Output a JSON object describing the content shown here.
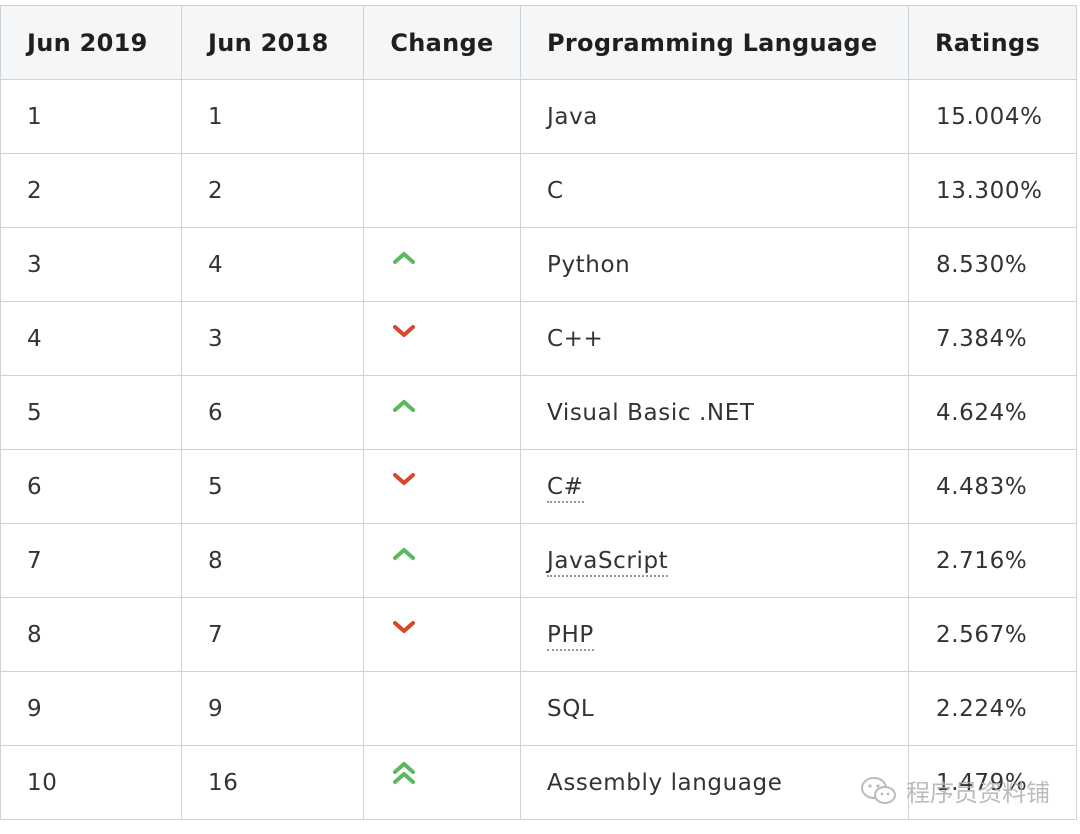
{
  "table": {
    "headers": [
      "Jun 2019",
      "Jun 2018",
      "Change",
      "Programming Language",
      "Ratings"
    ],
    "rows": [
      {
        "jun2019": "1",
        "jun2018": "1",
        "change": "none",
        "language": "Java",
        "link": false,
        "rating": "15.004%"
      },
      {
        "jun2019": "2",
        "jun2018": "2",
        "change": "none",
        "language": "C",
        "link": false,
        "rating": "13.300%"
      },
      {
        "jun2019": "3",
        "jun2018": "4",
        "change": "up",
        "language": "Python",
        "link": false,
        "rating": "8.530%"
      },
      {
        "jun2019": "4",
        "jun2018": "3",
        "change": "down",
        "language": "C++",
        "link": false,
        "rating": "7.384%"
      },
      {
        "jun2019": "5",
        "jun2018": "6",
        "change": "up",
        "language": "Visual Basic .NET",
        "link": false,
        "rating": "4.624%"
      },
      {
        "jun2019": "6",
        "jun2018": "5",
        "change": "down",
        "language": "C#",
        "link": true,
        "rating": "4.483%"
      },
      {
        "jun2019": "7",
        "jun2018": "8",
        "change": "up",
        "language": "JavaScript",
        "link": true,
        "rating": "2.716%"
      },
      {
        "jun2019": "8",
        "jun2018": "7",
        "change": "down",
        "language": "PHP",
        "link": true,
        "rating": "2.567%"
      },
      {
        "jun2019": "9",
        "jun2018": "9",
        "change": "none",
        "language": "SQL",
        "link": false,
        "rating": "2.224%"
      },
      {
        "jun2019": "10",
        "jun2018": "16",
        "change": "double-up",
        "language": "Assembly language",
        "link": false,
        "rating": "1.479%"
      }
    ]
  },
  "icons": {
    "up": "chevron-up-icon",
    "down": "chevron-down-icon",
    "double_up": "double-chevron-up-icon"
  },
  "colors": {
    "up": "#5cb85c",
    "down": "#d9472b",
    "header_bg": "#f4f6f8",
    "border": "#cfd3d8"
  },
  "watermark": {
    "text": "程序员资料铺"
  }
}
